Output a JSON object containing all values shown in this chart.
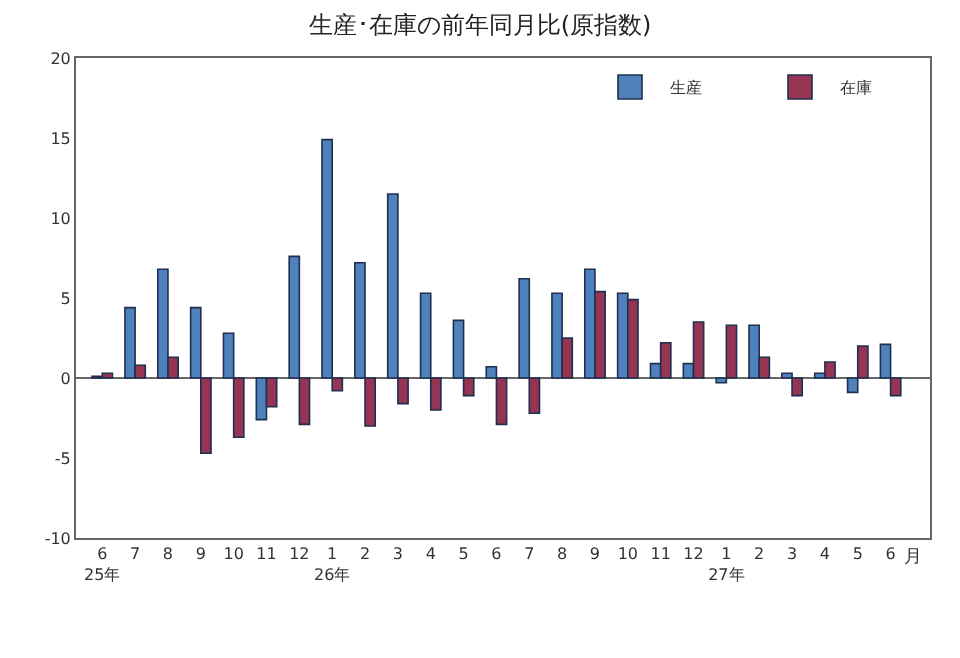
{
  "chart_data": {
    "type": "bar",
    "title": "生産･在庫の前年同月比(原指数)",
    "xlabel": "月",
    "categories": [
      "6\n25年",
      "7",
      "8",
      "9",
      "10",
      "11",
      "12",
      "1\n26年",
      "2",
      "3",
      "4",
      "5",
      "6",
      "7",
      "8",
      "9",
      "10",
      "11",
      "12",
      "1\n27年",
      "2",
      "3",
      "4",
      "5",
      "6"
    ],
    "series": [
      {
        "name": "生産",
        "color": "#4f81bd",
        "values": [
          0.1,
          4.4,
          6.8,
          4.4,
          2.8,
          -2.6,
          7.6,
          14.9,
          7.2,
          11.5,
          5.3,
          3.6,
          0.7,
          6.2,
          5.3,
          6.8,
          5.3,
          0.9,
          0.9,
          -0.3,
          3.3,
          0.3,
          0.3,
          -0.9,
          2.1
        ]
      },
      {
        "name": "在庫",
        "color": "#953553",
        "values": [
          0.3,
          0.8,
          1.3,
          -4.7,
          -3.7,
          -1.8,
          -2.9,
          -0.8,
          -3.0,
          -1.6,
          -2.0,
          -1.1,
          -2.9,
          -2.2,
          2.5,
          5.4,
          4.9,
          2.2,
          3.5,
          3.3,
          1.3,
          -1.1,
          1.0,
          2.0,
          -1.1
        ]
      }
    ],
    "ylim": [
      -10,
      20
    ],
    "yticks": [
      -10,
      -5,
      0,
      5,
      10,
      15,
      20
    ],
    "ref_lines": [
      {
        "axis": "y",
        "value": 0
      }
    ],
    "legend": "top right"
  }
}
